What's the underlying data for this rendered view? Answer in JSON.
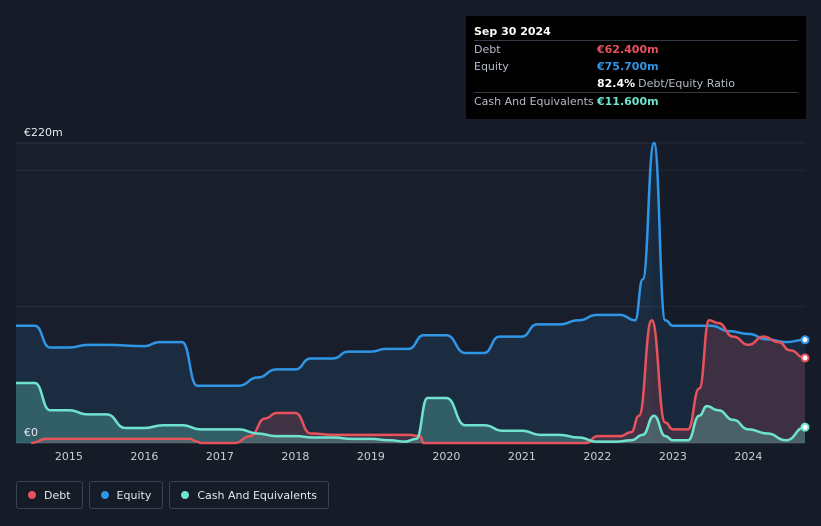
{
  "tooltip": {
    "date": "Sep 30 2024",
    "debt_label": "Debt",
    "debt_value": "€62.400m",
    "equity_label": "Equity",
    "equity_value": "€75.700m",
    "ratio_value": "82.4%",
    "ratio_label": "Debt/Equity Ratio",
    "cash_label": "Cash And Equivalents",
    "cash_value": "€11.600m"
  },
  "legend": {
    "debt": "Debt",
    "equity": "Equity",
    "cash": "Cash And Equivalents"
  },
  "colors": {
    "debt": "#e8525b",
    "equity": "#2f96e6",
    "cash": "#6fe3cf",
    "background": "#151b27"
  },
  "chart_data": {
    "type": "area",
    "y_top_label": "€220m",
    "y_zero_label": "€0",
    "ylim": [
      0,
      220
    ],
    "xlim": [
      2014.3,
      2024.75
    ],
    "x_ticks": [
      "2015",
      "2016",
      "2017",
      "2018",
      "2019",
      "2020",
      "2021",
      "2022",
      "2023",
      "2024"
    ],
    "x_tick_values": [
      2015,
      2016,
      2017,
      2018,
      2019,
      2020,
      2021,
      2022,
      2023,
      2024
    ],
    "series": [
      {
        "name": "Debt",
        "x": [
          2014.5,
          2014.7,
          2015.0,
          2015.5,
          2016.0,
          2016.6,
          2016.7,
          2016.75,
          2017.2,
          2017.4,
          2017.6,
          2017.75,
          2018.0,
          2018.2,
          2018.5,
          2019.0,
          2019.5,
          2019.65,
          2019.7,
          2020.0,
          2020.5,
          2021.0,
          2021.5,
          2021.85,
          2022.0,
          2022.3,
          2022.45,
          2022.55,
          2022.72,
          2022.9,
          2023.0,
          2023.2,
          2023.35,
          2023.48,
          2023.6,
          2023.8,
          2024.0,
          2024.2,
          2024.4,
          2024.55,
          2024.75
        ],
        "values": [
          0,
          3,
          3,
          3,
          3,
          3,
          1,
          0,
          0,
          5,
          18,
          22,
          22,
          7,
          6,
          6,
          6,
          5,
          0,
          0,
          0,
          0,
          0,
          0,
          5,
          5,
          8,
          20,
          90,
          15,
          10,
          10,
          40,
          90,
          88,
          78,
          72,
          78,
          74,
          68,
          62.4
        ]
      },
      {
        "name": "Equity",
        "x": [
          2014.3,
          2014.55,
          2014.75,
          2015.0,
          2015.25,
          2015.5,
          2016.0,
          2016.2,
          2016.5,
          2016.7,
          2017.0,
          2017.25,
          2017.5,
          2017.75,
          2018.0,
          2018.2,
          2018.5,
          2018.7,
          2019.0,
          2019.2,
          2019.5,
          2019.7,
          2020.0,
          2020.25,
          2020.5,
          2020.7,
          2021.0,
          2021.2,
          2021.5,
          2021.75,
          2022.0,
          2022.3,
          2022.5,
          2022.6,
          2022.75,
          2022.9,
          2023.0,
          2023.2,
          2023.5,
          2023.75,
          2024.0,
          2024.25,
          2024.5,
          2024.75
        ],
        "values": [
          86,
          86,
          70,
          70,
          72,
          72,
          71,
          74,
          74,
          42,
          42,
          42,
          48,
          54,
          54,
          62,
          62,
          67,
          67,
          69,
          69,
          79,
          79,
          66,
          66,
          78,
          78,
          87,
          87,
          90,
          94,
          94,
          90,
          120,
          220,
          90,
          86,
          86,
          86,
          82,
          80,
          76,
          74,
          75.7
        ]
      },
      {
        "name": "Cash And Equivalents",
        "x": [
          2014.3,
          2014.55,
          2014.75,
          2015.0,
          2015.25,
          2015.5,
          2015.75,
          2016.0,
          2016.25,
          2016.5,
          2016.75,
          2017.0,
          2017.25,
          2017.5,
          2017.75,
          2018.0,
          2018.25,
          2018.5,
          2018.75,
          2019.0,
          2019.25,
          2019.45,
          2019.6,
          2019.75,
          2020.0,
          2020.25,
          2020.5,
          2020.75,
          2021.0,
          2021.25,
          2021.5,
          2021.75,
          2022.0,
          2022.25,
          2022.45,
          2022.6,
          2022.75,
          2022.9,
          2023.0,
          2023.2,
          2023.35,
          2023.45,
          2023.6,
          2023.8,
          2024.0,
          2024.25,
          2024.5,
          2024.75
        ],
        "values": [
          44,
          44,
          24,
          24,
          21,
          21,
          11,
          11,
          13,
          13,
          10,
          10,
          10,
          7,
          5,
          5,
          4,
          4,
          3,
          3,
          2,
          1,
          3,
          33,
          33,
          13,
          13,
          9,
          9,
          6,
          6,
          4,
          1,
          1,
          2,
          6,
          20,
          5,
          2,
          2,
          20,
          27,
          24,
          17,
          10,
          7,
          2,
          11.6
        ]
      }
    ]
  }
}
